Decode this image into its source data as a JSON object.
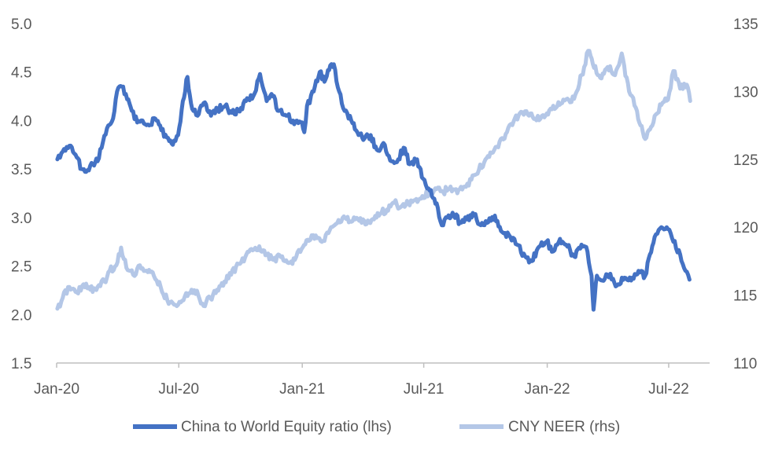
{
  "chart_data": {
    "type": "line",
    "title": "",
    "xlabel": "",
    "ylabel": "",
    "x_ticks": [
      "Jan-20",
      "Jul-20",
      "Jan-21",
      "Jul-21",
      "Jan-22",
      "Jul-22"
    ],
    "x_tick_dates": [
      "2020-01-01",
      "2020-07-01",
      "2021-01-01",
      "2021-07-01",
      "2022-01-01",
      "2022-07-01"
    ],
    "x_range": [
      "2020-01-01",
      "2022-08-31"
    ],
    "y_left": {
      "ylim": [
        1.5,
        5.0
      ],
      "ticks": [
        "1.5",
        "2.0",
        "2.5",
        "3.0",
        "3.5",
        "4.0",
        "4.5",
        "5.0"
      ]
    },
    "y_right": {
      "ylim": [
        110,
        135
      ],
      "ticks": [
        "110",
        "115",
        "120",
        "125",
        "130",
        "135"
      ]
    },
    "grid": false,
    "legend_position": "bottom",
    "series": [
      {
        "name": "China to World Equity ratio (lhs)",
        "axis": "left",
        "color": "#4472C4",
        "points": [
          [
            "2020-01-02",
            3.6
          ],
          [
            "2020-01-10",
            3.68
          ],
          [
            "2020-01-20",
            3.74
          ],
          [
            "2020-01-31",
            3.62
          ],
          [
            "2020-02-07",
            3.5
          ],
          [
            "2020-02-14",
            3.47
          ],
          [
            "2020-02-24",
            3.55
          ],
          [
            "2020-03-02",
            3.58
          ],
          [
            "2020-03-10",
            3.78
          ],
          [
            "2020-03-18",
            3.95
          ],
          [
            "2020-03-25",
            4.02
          ],
          [
            "2020-03-31",
            4.3
          ],
          [
            "2020-04-07",
            4.35
          ],
          [
            "2020-04-15",
            4.22
          ],
          [
            "2020-04-22",
            4.1
          ],
          [
            "2020-04-30",
            3.98
          ],
          [
            "2020-05-08",
            4.0
          ],
          [
            "2020-05-18",
            3.95
          ],
          [
            "2020-05-27",
            4.02
          ],
          [
            "2020-06-05",
            3.9
          ],
          [
            "2020-06-15",
            3.82
          ],
          [
            "2020-06-22",
            3.75
          ],
          [
            "2020-06-30",
            3.85
          ],
          [
            "2020-07-07",
            4.2
          ],
          [
            "2020-07-14",
            4.45
          ],
          [
            "2020-07-21",
            4.12
          ],
          [
            "2020-07-29",
            4.05
          ],
          [
            "2020-08-07",
            4.18
          ],
          [
            "2020-08-18",
            4.05
          ],
          [
            "2020-08-28",
            4.12
          ],
          [
            "2020-09-08",
            4.15
          ],
          [
            "2020-09-18",
            4.08
          ],
          [
            "2020-09-28",
            4.1
          ],
          [
            "2020-10-09",
            4.2
          ],
          [
            "2020-10-20",
            4.25
          ],
          [
            "2020-10-30",
            4.48
          ],
          [
            "2020-11-09",
            4.2
          ],
          [
            "2020-11-18",
            4.25
          ],
          [
            "2020-11-27",
            4.1
          ],
          [
            "2020-12-08",
            4.05
          ],
          [
            "2020-12-18",
            4.0
          ],
          [
            "2020-12-30",
            3.98
          ],
          [
            "2021-01-04",
            3.88
          ],
          [
            "2021-01-08",
            4.15
          ],
          [
            "2021-01-18",
            4.3
          ],
          [
            "2021-01-27",
            4.5
          ],
          [
            "2021-02-03",
            4.4
          ],
          [
            "2021-02-10",
            4.52
          ],
          [
            "2021-02-17",
            4.58
          ],
          [
            "2021-02-25",
            4.3
          ],
          [
            "2021-03-05",
            4.1
          ],
          [
            "2021-03-15",
            4.0
          ],
          [
            "2021-03-24",
            3.88
          ],
          [
            "2021-04-02",
            3.8
          ],
          [
            "2021-04-13",
            3.85
          ],
          [
            "2021-04-22",
            3.7
          ],
          [
            "2021-05-04",
            3.75
          ],
          [
            "2021-05-14",
            3.58
          ],
          [
            "2021-05-24",
            3.6
          ],
          [
            "2021-06-01",
            3.72
          ],
          [
            "2021-06-10",
            3.55
          ],
          [
            "2021-06-21",
            3.6
          ],
          [
            "2021-06-30",
            3.4
          ],
          [
            "2021-07-08",
            3.3
          ],
          [
            "2021-07-15",
            3.2
          ],
          [
            "2021-07-22",
            3.1
          ],
          [
            "2021-07-28",
            2.92
          ],
          [
            "2021-08-05",
            3.0
          ],
          [
            "2021-08-13",
            3.05
          ],
          [
            "2021-08-24",
            2.95
          ],
          [
            "2021-09-03",
            2.98
          ],
          [
            "2021-09-14",
            3.02
          ],
          [
            "2021-09-24",
            2.92
          ],
          [
            "2021-10-05",
            2.95
          ],
          [
            "2021-10-15",
            3.02
          ],
          [
            "2021-10-26",
            2.85
          ],
          [
            "2021-11-05",
            2.82
          ],
          [
            "2021-11-17",
            2.72
          ],
          [
            "2021-11-29",
            2.6
          ],
          [
            "2021-12-09",
            2.55
          ],
          [
            "2021-12-20",
            2.7
          ],
          [
            "2021-12-31",
            2.75
          ],
          [
            "2022-01-10",
            2.65
          ],
          [
            "2022-01-20",
            2.78
          ],
          [
            "2022-01-31",
            2.7
          ],
          [
            "2022-02-10",
            2.6
          ],
          [
            "2022-02-21",
            2.72
          ],
          [
            "2022-03-02",
            2.65
          ],
          [
            "2022-03-08",
            2.4
          ],
          [
            "2022-03-11",
            2.05
          ],
          [
            "2022-03-16",
            2.4
          ],
          [
            "2022-03-24",
            2.35
          ],
          [
            "2022-04-05",
            2.42
          ],
          [
            "2022-04-15",
            2.3
          ],
          [
            "2022-04-26",
            2.38
          ],
          [
            "2022-05-06",
            2.35
          ],
          [
            "2022-05-17",
            2.45
          ],
          [
            "2022-05-27",
            2.4
          ],
          [
            "2022-06-03",
            2.62
          ],
          [
            "2022-06-10",
            2.8
          ],
          [
            "2022-06-20",
            2.9
          ],
          [
            "2022-06-30",
            2.88
          ],
          [
            "2022-07-08",
            2.75
          ],
          [
            "2022-07-18",
            2.62
          ],
          [
            "2022-07-26",
            2.45
          ],
          [
            "2022-08-01",
            2.36
          ]
        ]
      },
      {
        "name": "CNY NEER (rhs)",
        "axis": "right",
        "color": "#B4C7E7",
        "points": [
          [
            "2020-01-02",
            114.0
          ],
          [
            "2020-01-10",
            114.8
          ],
          [
            "2020-01-20",
            115.6
          ],
          [
            "2020-01-31",
            115.2
          ],
          [
            "2020-02-10",
            115.8
          ],
          [
            "2020-02-20",
            115.4
          ],
          [
            "2020-03-02",
            115.6
          ],
          [
            "2020-03-12",
            116.0
          ],
          [
            "2020-03-20",
            116.8
          ],
          [
            "2020-03-30",
            117.2
          ],
          [
            "2020-04-06",
            118.5
          ],
          [
            "2020-04-14",
            117.0
          ],
          [
            "2020-04-24",
            116.5
          ],
          [
            "2020-05-04",
            117.2
          ],
          [
            "2020-05-14",
            116.8
          ],
          [
            "2020-05-25",
            116.4
          ],
          [
            "2020-06-04",
            115.6
          ],
          [
            "2020-06-14",
            114.6
          ],
          [
            "2020-06-24",
            114.3
          ],
          [
            "2020-07-02",
            114.5
          ],
          [
            "2020-07-10",
            114.9
          ],
          [
            "2020-07-20",
            115.4
          ],
          [
            "2020-07-30",
            115.0
          ],
          [
            "2020-08-07",
            114.2
          ],
          [
            "2020-08-17",
            114.8
          ],
          [
            "2020-08-27",
            115.4
          ],
          [
            "2020-09-07",
            116.0
          ],
          [
            "2020-09-17",
            116.5
          ],
          [
            "2020-09-28",
            117.3
          ],
          [
            "2020-10-08",
            117.8
          ],
          [
            "2020-10-19",
            118.3
          ],
          [
            "2020-10-29",
            118.6
          ],
          [
            "2020-11-09",
            118.0
          ],
          [
            "2020-11-19",
            117.6
          ],
          [
            "2020-11-30",
            117.8
          ],
          [
            "2020-12-10",
            117.4
          ],
          [
            "2020-12-21",
            117.6
          ],
          [
            "2020-12-31",
            118.4
          ],
          [
            "2021-01-11",
            119.0
          ],
          [
            "2021-01-21",
            119.4
          ],
          [
            "2021-02-01",
            119.0
          ],
          [
            "2021-02-11",
            119.8
          ],
          [
            "2021-02-22",
            120.3
          ],
          [
            "2021-03-04",
            120.8
          ],
          [
            "2021-03-15",
            120.4
          ],
          [
            "2021-03-25",
            120.6
          ],
          [
            "2021-04-05",
            120.2
          ],
          [
            "2021-04-16",
            120.6
          ],
          [
            "2021-04-27",
            121.0
          ],
          [
            "2021-05-07",
            121.3
          ],
          [
            "2021-05-18",
            121.8
          ],
          [
            "2021-05-28",
            121.5
          ],
          [
            "2021-06-08",
            121.8
          ],
          [
            "2021-06-18",
            122.0
          ],
          [
            "2021-06-29",
            122.3
          ],
          [
            "2021-07-09",
            122.5
          ],
          [
            "2021-07-20",
            122.8
          ],
          [
            "2021-07-30",
            122.6
          ],
          [
            "2021-08-10",
            123.0
          ],
          [
            "2021-08-20",
            122.5
          ],
          [
            "2021-08-31",
            123.0
          ],
          [
            "2021-09-10",
            123.5
          ],
          [
            "2021-09-21",
            124.2
          ],
          [
            "2021-10-01",
            125.0
          ],
          [
            "2021-10-12",
            125.5
          ],
          [
            "2021-10-22",
            126.3
          ],
          [
            "2021-11-02",
            127.0
          ],
          [
            "2021-11-12",
            127.8
          ],
          [
            "2021-11-23",
            128.5
          ],
          [
            "2021-12-03",
            128.3
          ],
          [
            "2021-12-14",
            128.0
          ],
          [
            "2021-12-24",
            128.2
          ],
          [
            "2022-01-04",
            128.6
          ],
          [
            "2022-01-14",
            128.8
          ],
          [
            "2022-01-25",
            129.4
          ],
          [
            "2022-02-04",
            129.2
          ],
          [
            "2022-02-14",
            130.0
          ],
          [
            "2022-02-25",
            131.8
          ],
          [
            "2022-03-03",
            133.0
          ],
          [
            "2022-03-10",
            132.0
          ],
          [
            "2022-03-21",
            131.0
          ],
          [
            "2022-04-01",
            131.8
          ],
          [
            "2022-04-12",
            131.2
          ],
          [
            "2022-04-22",
            132.8
          ],
          [
            "2022-05-03",
            130.0
          ],
          [
            "2022-05-13",
            128.8
          ],
          [
            "2022-05-20",
            127.5
          ],
          [
            "2022-05-27",
            126.5
          ],
          [
            "2022-06-03",
            127.2
          ],
          [
            "2022-06-10",
            128.2
          ],
          [
            "2022-06-20",
            129.0
          ],
          [
            "2022-06-30",
            129.4
          ],
          [
            "2022-07-08",
            131.5
          ],
          [
            "2022-07-18",
            130.2
          ],
          [
            "2022-07-28",
            130.5
          ],
          [
            "2022-08-02",
            129.3
          ]
        ]
      }
    ]
  }
}
